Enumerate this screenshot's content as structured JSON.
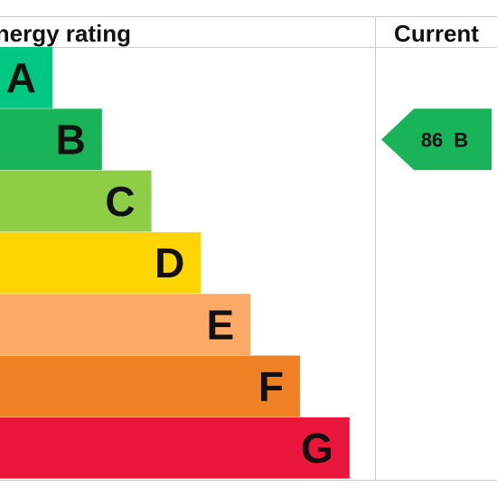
{
  "header": {
    "title": "Energy rating",
    "current": "Current"
  },
  "bands": [
    {
      "label": "A",
      "color": "#00c781"
    },
    {
      "label": "B",
      "color": "#19b459"
    },
    {
      "label": "C",
      "color": "#8dce46"
    },
    {
      "label": "D",
      "color": "#ffd500"
    },
    {
      "label": "E",
      "color": "#fcaa65"
    },
    {
      "label": "F",
      "color": "#ef8023"
    },
    {
      "label": "G",
      "color": "#e9153b"
    }
  ],
  "current": {
    "score": 86,
    "band": "B"
  }
}
